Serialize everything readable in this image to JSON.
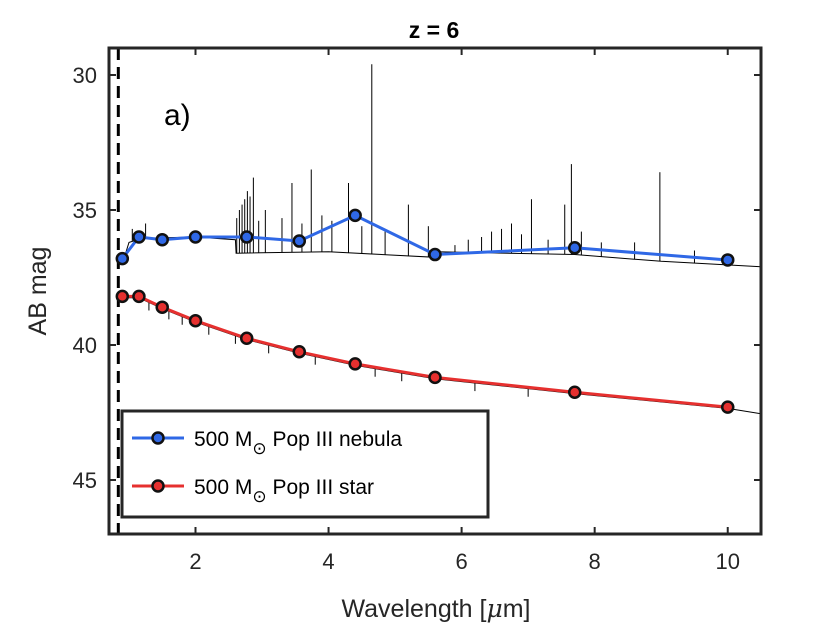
{
  "chart_data": {
    "type": "line",
    "title": "z = 6",
    "xlabel": "Wavelength [",
    "xlabel_unit": "μ",
    "xlabel_suffix": "m]",
    "ylabel": "AB mag",
    "xlim": [
      0.7,
      10.5
    ],
    "ylim": [
      47,
      29
    ],
    "y_reversed": true,
    "xticks": [
      2,
      4,
      6,
      8,
      10
    ],
    "xtick_labels": [
      "2",
      "4",
      "6",
      "8",
      "10"
    ],
    "yticks": [
      30,
      35,
      40,
      45
    ],
    "ytick_labels": [
      "30",
      "35",
      "40",
      "45"
    ],
    "annotation": "a)",
    "vline_x": 0.84,
    "series": [
      {
        "name": "500 M☉ Pop III nebula",
        "legend_prefix": "500 M",
        "legend_subscript": "⊙",
        "legend_suffix": " Pop III nebula",
        "color": "#2f68e6",
        "x": [
          0.9,
          1.15,
          1.5,
          2.0,
          2.77,
          3.56,
          4.4,
          5.6,
          7.7,
          10.0
        ],
        "values": [
          36.8,
          36.0,
          36.1,
          36.0,
          36.0,
          36.15,
          35.2,
          36.65,
          36.4,
          36.85
        ]
      },
      {
        "name": "500 M☉ Pop III star",
        "legend_prefix": "500 M",
        "legend_subscript": "⊙",
        "legend_suffix": " Pop III star",
        "color": "#e6302f",
        "x": [
          0.9,
          1.15,
          1.5,
          2.0,
          2.77,
          3.56,
          4.4,
          5.6,
          7.7,
          10.0
        ],
        "values": [
          38.2,
          38.2,
          38.6,
          39.1,
          39.75,
          40.25,
          40.7,
          41.2,
          41.75,
          42.3
        ]
      }
    ],
    "nebula_spectrum_lines": [
      [
        1.05,
        35.7
      ],
      [
        1.25,
        35.5
      ],
      [
        2.62,
        35.3
      ],
      [
        2.66,
        35.0
      ],
      [
        2.7,
        34.8
      ],
      [
        2.74,
        34.6
      ],
      [
        2.78,
        34.3
      ],
      [
        2.82,
        34.5
      ],
      [
        2.87,
        33.8
      ],
      [
        2.95,
        35.4
      ],
      [
        3.05,
        35.0
      ],
      [
        3.3,
        35.3
      ],
      [
        3.45,
        34.0
      ],
      [
        3.6,
        35.5
      ],
      [
        3.74,
        33.5
      ],
      [
        3.9,
        35.2
      ],
      [
        4.05,
        35.4
      ],
      [
        4.3,
        34.0
      ],
      [
        4.5,
        35.6
      ],
      [
        4.65,
        29.6
      ],
      [
        4.85,
        35.8
      ],
      [
        5.2,
        34.8
      ],
      [
        5.5,
        35.6
      ],
      [
        5.9,
        36.3
      ],
      [
        6.1,
        36.1
      ],
      [
        6.3,
        36.0
      ],
      [
        6.45,
        35.8
      ],
      [
        6.6,
        35.7
      ],
      [
        6.75,
        35.5
      ],
      [
        6.9,
        35.9
      ],
      [
        7.05,
        34.6
      ],
      [
        7.3,
        36.1
      ],
      [
        7.55,
        34.8
      ],
      [
        7.65,
        33.3
      ],
      [
        7.8,
        35.8
      ],
      [
        8.1,
        36.2
      ],
      [
        8.6,
        36.2
      ],
      [
        8.98,
        33.6
      ],
      [
        9.5,
        36.5
      ]
    ]
  }
}
